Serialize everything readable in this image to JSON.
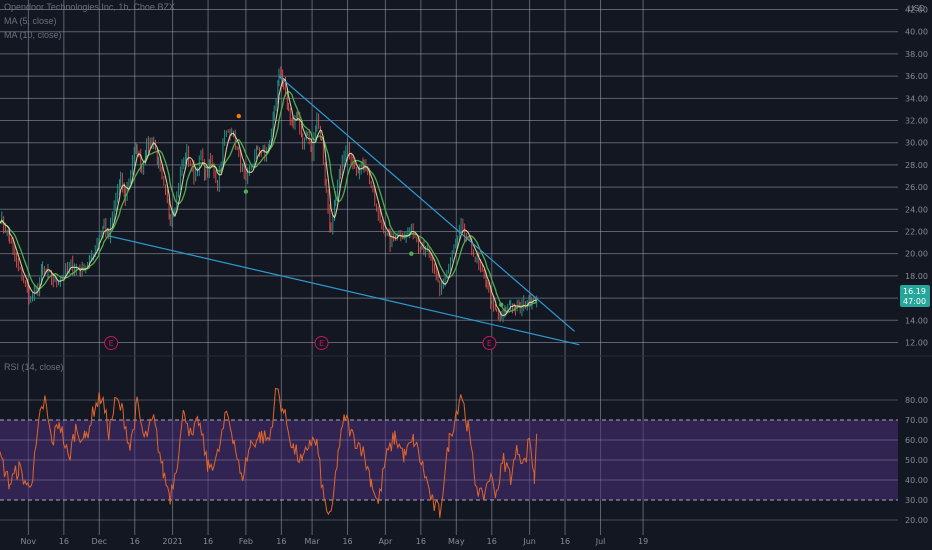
{
  "header": {
    "title": "Opendoor Technologies Inc, 1h, Cboe BZX",
    "ma5": "MA (5, close)",
    "ma10": "MA (10, close)",
    "rsi_label": "RSI (14, close)"
  },
  "price_badge": {
    "price": "16.19",
    "countdown": "47:00",
    "color": "#26a69a"
  },
  "colors": {
    "background": "#131722",
    "grid": "#9aa0ad",
    "up": "#26a69a",
    "down": "#ef5350",
    "ma5": "#f5e6a8",
    "ma10": "#4caf50",
    "trendline": "#2d9bd1",
    "rsi": "#e0662b",
    "rsi_band": "#4a2d7a",
    "earnings": "#c2185b"
  },
  "earnings_label": "E",
  "chart_data": [
    {
      "type": "line",
      "title": "Opendoor Technologies Inc, 1h, Cboe BZX",
      "currency": "USD",
      "x_ticks": [
        "Nov",
        "16",
        "Dec",
        "16",
        "2021",
        "16",
        "Feb",
        "16",
        "Mar",
        "16",
        "Apr",
        "16",
        "May",
        "16",
        "Jun",
        "16",
        "Jul",
        "19"
      ],
      "y_ticks": [
        "12.00",
        "14.00",
        "16.00",
        "18.00",
        "20.00",
        "22.00",
        "24.00",
        "26.00",
        "28.00",
        "30.00",
        "32.00",
        "34.00",
        "36.00",
        "38.00",
        "40.00",
        "42.00"
      ],
      "ylim": [
        11.5,
        42.5
      ],
      "last_price": 16.19,
      "price_waypoints": [
        [
          "2020-10-20",
          23.2
        ],
        [
          "2020-10-24",
          21.5
        ],
        [
          "2020-10-27",
          19.0
        ],
        [
          "2020-10-30",
          17.6
        ],
        [
          "2020-11-02",
          16.0
        ],
        [
          "2020-11-05",
          17.0
        ],
        [
          "2020-11-07",
          18.6
        ],
        [
          "2020-11-10",
          18.0
        ],
        [
          "2020-11-13",
          17.4
        ],
        [
          "2020-11-16",
          18.2
        ],
        [
          "2020-11-19",
          18.9
        ],
        [
          "2020-11-23",
          18.5
        ],
        [
          "2020-11-27",
          19.4
        ],
        [
          "2020-12-01",
          21.6
        ],
        [
          "2020-12-03",
          22.6
        ],
        [
          "2020-12-05",
          21.5
        ],
        [
          "2020-12-08",
          25.0
        ],
        [
          "2020-12-10",
          26.8
        ],
        [
          "2020-12-12",
          25.0
        ],
        [
          "2020-12-15",
          28.5
        ],
        [
          "2020-12-17",
          29.4
        ],
        [
          "2020-12-19",
          27.6
        ],
        [
          "2020-12-21",
          29.8
        ],
        [
          "2020-12-24",
          30.2
        ],
        [
          "2020-12-26",
          28.0
        ],
        [
          "2020-12-29",
          25.2
        ],
        [
          "2020-12-31",
          23.0
        ],
        [
          "2021-01-02",
          24.5
        ],
        [
          "2021-01-05",
          28.0
        ],
        [
          "2021-01-07",
          29.2
        ],
        [
          "2021-01-10",
          27.0
        ],
        [
          "2021-01-13",
          28.8
        ],
        [
          "2021-01-15",
          27.0
        ],
        [
          "2021-01-17",
          28.4
        ],
        [
          "2021-01-20",
          26.4
        ],
        [
          "2021-01-23",
          30.6
        ],
        [
          "2021-01-26",
          31.2
        ],
        [
          "2021-01-29",
          28.6
        ],
        [
          "2021-02-01",
          26.4
        ],
        [
          "2021-02-04",
          28.2
        ],
        [
          "2021-02-06",
          29.6
        ],
        [
          "2021-02-09",
          28.8
        ],
        [
          "2021-02-11",
          30.0
        ],
        [
          "2021-02-13",
          33.0
        ],
        [
          "2021-02-15",
          36.2
        ],
        [
          "2021-02-17",
          35.0
        ],
        [
          "2021-02-19",
          32.8
        ],
        [
          "2021-02-21",
          31.5
        ],
        [
          "2021-02-23",
          32.6
        ],
        [
          "2021-02-25",
          30.0
        ],
        [
          "2021-02-27",
          30.8
        ],
        [
          "2021-03-01",
          29.0
        ],
        [
          "2021-03-03",
          32.4
        ],
        [
          "2021-03-05",
          30.0
        ],
        [
          "2021-03-07",
          25.5
        ],
        [
          "2021-03-09",
          21.8
        ],
        [
          "2021-03-11",
          25.0
        ],
        [
          "2021-03-13",
          27.6
        ],
        [
          "2021-03-16",
          29.6
        ],
        [
          "2021-03-19",
          28.0
        ],
        [
          "2021-03-21",
          27.6
        ],
        [
          "2021-03-23",
          28.3
        ],
        [
          "2021-03-26",
          26.0
        ],
        [
          "2021-03-29",
          23.2
        ],
        [
          "2021-04-01",
          22.0
        ],
        [
          "2021-04-03",
          21.0
        ],
        [
          "2021-04-06",
          22.0
        ],
        [
          "2021-04-09",
          21.6
        ],
        [
          "2021-04-12",
          22.2
        ],
        [
          "2021-04-15",
          21.0
        ],
        [
          "2021-04-18",
          20.5
        ],
        [
          "2021-04-21",
          18.8
        ],
        [
          "2021-04-24",
          16.6
        ],
        [
          "2021-04-27",
          18.2
        ],
        [
          "2021-04-30",
          20.4
        ],
        [
          "2021-05-03",
          22.4
        ],
        [
          "2021-05-06",
          21.0
        ],
        [
          "2021-05-09",
          19.8
        ],
        [
          "2021-05-12",
          18.0
        ],
        [
          "2021-05-14",
          17.4
        ],
        [
          "2021-05-16",
          15.4
        ],
        [
          "2021-05-18",
          14.6
        ],
        [
          "2021-05-20",
          14.0
        ],
        [
          "2021-05-22",
          15.0
        ],
        [
          "2021-05-24",
          15.6
        ],
        [
          "2021-05-26",
          15.2
        ],
        [
          "2021-05-28",
          15.0
        ],
        [
          "2021-05-31",
          15.7
        ],
        [
          "2021-06-02",
          16.0
        ],
        [
          "2021-06-04",
          16.19
        ]
      ],
      "trendlines": [
        {
          "name": "upper",
          "from": [
            "2021-02-15",
            36.0
          ],
          "to": [
            "2021-06-20",
            13.0
          ]
        },
        {
          "name": "lower",
          "from": [
            "2020-12-05",
            21.6
          ],
          "to": [
            "2021-06-22",
            11.8
          ]
        }
      ],
      "earnings_dates": [
        "2020-12-06",
        "2021-03-05",
        "2021-05-15"
      ],
      "signal_dots": [
        {
          "date": "2021-01-29",
          "value": 32.4,
          "color": "#f57c00"
        },
        {
          "date": "2021-02-01",
          "value": 25.6,
          "color": "#4caf50"
        },
        {
          "date": "2021-04-12",
          "value": 20.0,
          "color": "#4caf50"
        },
        {
          "date": "2021-05-20",
          "value": 15.4,
          "color": "#4caf50"
        }
      ]
    },
    {
      "type": "line",
      "title": "RSI (14, close)",
      "y_ticks": [
        "20.00",
        "30.00",
        "40.00",
        "50.00",
        "60.00",
        "70.00",
        "80.00"
      ],
      "ylim": [
        16,
        90
      ],
      "band": [
        30,
        70
      ],
      "waypoints": [
        [
          "2020-10-20",
          52
        ],
        [
          "2020-10-24",
          38
        ],
        [
          "2020-10-28",
          46
        ],
        [
          "2020-11-01",
          36
        ],
        [
          "2020-11-03",
          44
        ],
        [
          "2020-11-06",
          72
        ],
        [
          "2020-11-08",
          80
        ],
        [
          "2020-11-11",
          58
        ],
        [
          "2020-11-14",
          70
        ],
        [
          "2020-11-18",
          50
        ],
        [
          "2020-11-21",
          66
        ],
        [
          "2020-11-25",
          60
        ],
        [
          "2020-11-29",
          76
        ],
        [
          "2020-12-02",
          82
        ],
        [
          "2020-12-05",
          64
        ],
        [
          "2020-12-08",
          80
        ],
        [
          "2020-12-11",
          74
        ],
        [
          "2020-12-14",
          56
        ],
        [
          "2020-12-17",
          78
        ],
        [
          "2020-12-20",
          60
        ],
        [
          "2020-12-24",
          70
        ],
        [
          "2020-12-28",
          44
        ],
        [
          "2020-12-31",
          32
        ],
        [
          "2021-01-03",
          50
        ],
        [
          "2021-01-06",
          76
        ],
        [
          "2021-01-09",
          60
        ],
        [
          "2021-01-12",
          70
        ],
        [
          "2021-01-16",
          46
        ],
        [
          "2021-01-20",
          52
        ],
        [
          "2021-01-24",
          74
        ],
        [
          "2021-01-27",
          60
        ],
        [
          "2021-01-30",
          40
        ],
        [
          "2021-02-03",
          58
        ],
        [
          "2021-02-07",
          62
        ],
        [
          "2021-02-11",
          60
        ],
        [
          "2021-02-14",
          86
        ],
        [
          "2021-02-17",
          74
        ],
        [
          "2021-02-21",
          56
        ],
        [
          "2021-02-25",
          48
        ],
        [
          "2021-02-28",
          60
        ],
        [
          "2021-03-03",
          58
        ],
        [
          "2021-03-06",
          30
        ],
        [
          "2021-03-09",
          20
        ],
        [
          "2021-03-12",
          54
        ],
        [
          "2021-03-15",
          72
        ],
        [
          "2021-03-18",
          62
        ],
        [
          "2021-03-22",
          56
        ],
        [
          "2021-03-26",
          40
        ],
        [
          "2021-03-29",
          28
        ],
        [
          "2021-04-01",
          50
        ],
        [
          "2021-04-05",
          62
        ],
        [
          "2021-04-09",
          52
        ],
        [
          "2021-04-13",
          60
        ],
        [
          "2021-04-17",
          46
        ],
        [
          "2021-04-21",
          28
        ],
        [
          "2021-04-24",
          24
        ],
        [
          "2021-04-28",
          60
        ],
        [
          "2021-05-01",
          74
        ],
        [
          "2021-05-03",
          84
        ],
        [
          "2021-05-06",
          66
        ],
        [
          "2021-05-09",
          40
        ],
        [
          "2021-05-12",
          30
        ],
        [
          "2021-05-15",
          42
        ],
        [
          "2021-05-18",
          34
        ],
        [
          "2021-05-21",
          50
        ],
        [
          "2021-05-24",
          42
        ],
        [
          "2021-05-27",
          56
        ],
        [
          "2021-05-30",
          48
        ],
        [
          "2021-06-01",
          62
        ],
        [
          "2021-06-03",
          40
        ],
        [
          "2021-06-04",
          64
        ]
      ]
    }
  ]
}
